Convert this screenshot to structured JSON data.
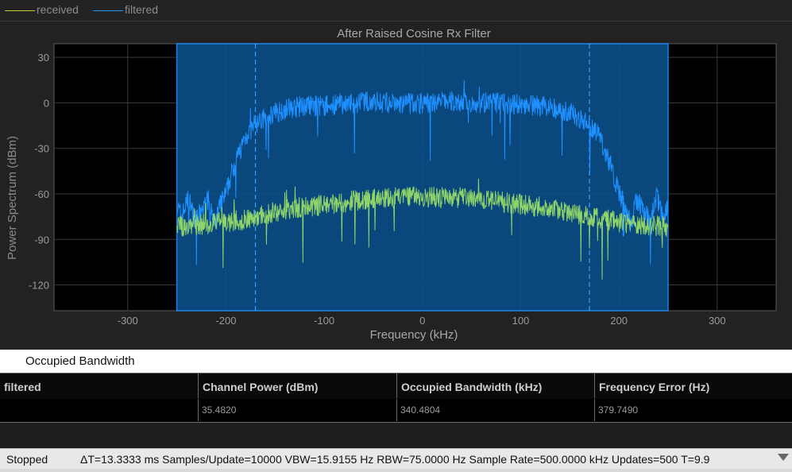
{
  "legend": {
    "items": [
      {
        "label": "received",
        "color": "#c8c832"
      },
      {
        "label": "filtered",
        "color": "#2196f3"
      }
    ]
  },
  "chart_data": {
    "type": "line",
    "title": "After Raised Cosine Rx Filter",
    "xlabel": "Frequency (kHz)",
    "ylabel": "Power Spectrum (dBm)",
    "xlim": [
      -375,
      360
    ],
    "ylim": [
      -137,
      39
    ],
    "xticks": [
      -300,
      -200,
      -100,
      0,
      100,
      200,
      300
    ],
    "yticks": [
      30,
      0,
      -30,
      -60,
      -90,
      -120
    ],
    "grid": true,
    "occupied_band": {
      "start": -250,
      "end": 250,
      "color": "#0b4f8a"
    },
    "occupied_markers": [
      -170,
      170
    ],
    "series": [
      {
        "name": "filtered",
        "color": "#1e90ff",
        "x": [
          -250,
          -245,
          -238,
          -232,
          -225,
          -218,
          -212,
          -205,
          -200,
          -195,
          -188,
          -180,
          -170,
          -155,
          -140,
          -120,
          -100,
          -75,
          -50,
          -25,
          0,
          25,
          50,
          75,
          100,
          120,
          140,
          155,
          170,
          180,
          188,
          195,
          200,
          205,
          212,
          218,
          225,
          232,
          238,
          245,
          250
        ],
        "y": [
          -68,
          -75,
          -62,
          -78,
          -72,
          -64,
          -80,
          -66,
          -60,
          -48,
          -35,
          -22,
          -14,
          -8,
          -4,
          -2,
          -2,
          0,
          1,
          -1,
          0,
          1,
          0,
          0,
          -1,
          -2,
          -4,
          -8,
          -14,
          -22,
          -35,
          -48,
          -60,
          -66,
          -80,
          -64,
          -72,
          -78,
          -62,
          -75,
          -68
        ]
      },
      {
        "name": "received",
        "color": "#8fd46a",
        "x": [
          -250,
          -225,
          -200,
          -175,
          -150,
          -125,
          -100,
          -75,
          -50,
          -25,
          0,
          25,
          50,
          75,
          100,
          125,
          150,
          175,
          200,
          225,
          250
        ],
        "y": [
          -82,
          -80,
          -79,
          -76,
          -72,
          -69,
          -67,
          -65,
          -63,
          -62,
          -62,
          -62,
          -63,
          -65,
          -67,
          -69,
          -72,
          -76,
          -79,
          -80,
          -82
        ]
      }
    ]
  },
  "measurements": {
    "title": "Occupied Bandwidth",
    "columns": [
      "filtered",
      "Channel Power (dBm)",
      "Occupied Bandwidth (kHz)",
      "Frequency Error (Hz)"
    ],
    "rows": [
      [
        "",
        "35.4820",
        "340.4804",
        "379.7490"
      ]
    ]
  },
  "status": {
    "state": "Stopped",
    "info": "ΔT=13.3333 ms  Samples/Update=10000  VBW=15.9155 Hz  RBW=75.0000 Hz  Sample Rate=500.0000 kHz  Updates=500  T=9.9"
  }
}
